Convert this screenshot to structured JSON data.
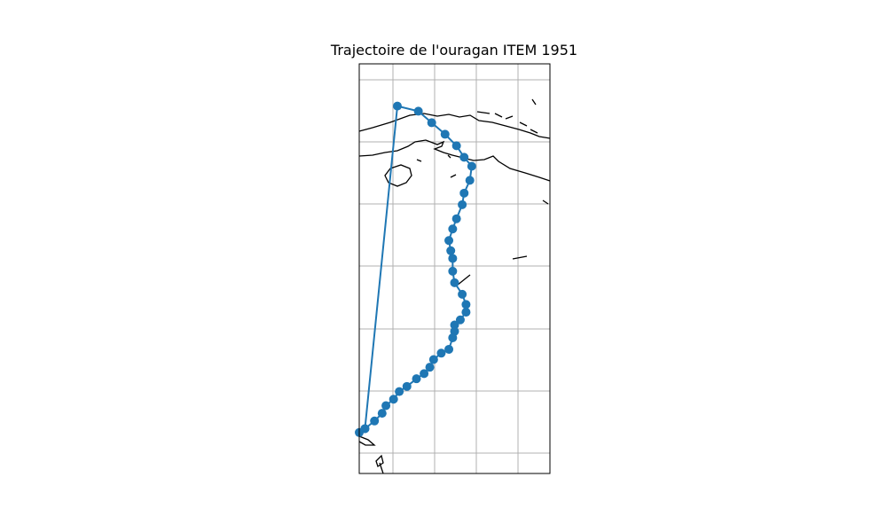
{
  "title": "Trajectoire de l'ouragan ITEM 1951",
  "colors": {
    "track": "#1f77b4",
    "grid": "#b0b0b0",
    "coast": "#000000",
    "frame": "#000000"
  },
  "chart_data": {
    "type": "scatter",
    "title": "Trajectoire de l'ouragan ITEM 1951",
    "grid": true,
    "marker": "circle",
    "line": "connected",
    "series": [
      {
        "values_description_omitted": true,
        "points": [
          [
            2.0,
            15.3
          ],
          [
            3.1,
            15.7
          ],
          [
            3.8,
            16.6
          ],
          [
            4.5,
            17.5
          ],
          [
            5.1,
            18.4
          ],
          [
            5.5,
            19.3
          ],
          [
            5.9,
            20.0
          ],
          [
            5.8,
            21.1
          ],
          [
            5.5,
            22.1
          ],
          [
            5.4,
            23.0
          ],
          [
            5.1,
            24.1
          ],
          [
            4.9,
            24.9
          ],
          [
            4.7,
            25.8
          ],
          [
            4.8,
            26.6
          ],
          [
            4.9,
            27.2
          ],
          [
            4.9,
            28.2
          ],
          [
            5.0,
            29.1
          ],
          [
            5.4,
            30.0
          ],
          [
            5.6,
            30.8
          ],
          [
            5.6,
            31.4
          ],
          [
            5.3,
            32.0
          ],
          [
            5.0,
            32.4
          ],
          [
            5.0,
            32.9
          ],
          [
            4.9,
            33.4
          ],
          [
            4.7,
            34.3
          ],
          [
            4.3,
            34.6
          ],
          [
            3.9,
            35.1
          ],
          [
            3.7,
            35.7
          ],
          [
            3.4,
            36.2
          ],
          [
            3.0,
            36.6
          ],
          [
            2.5,
            37.2
          ],
          [
            2.1,
            37.6
          ],
          [
            1.8,
            38.2
          ],
          [
            1.4,
            38.7
          ],
          [
            1.2,
            39.3
          ],
          [
            0.8,
            39.9
          ],
          [
            0.3,
            40.5
          ],
          [
            0.0,
            40.8
          ],
          [
            0.3,
            40.5
          ],
          [
            2.0,
            15.3
          ]
        ]
      }
    ]
  }
}
